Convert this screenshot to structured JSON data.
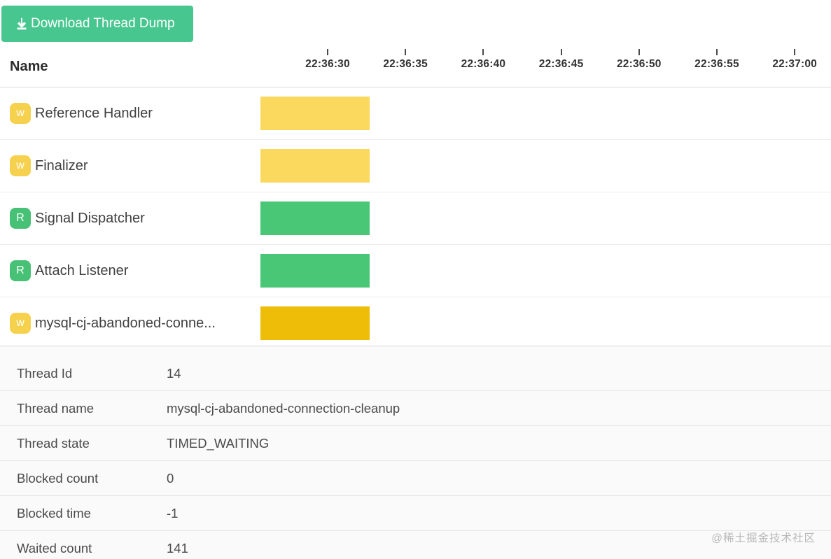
{
  "toolbar": {
    "download_button_label": "Download Thread Dump"
  },
  "table_header": {
    "name_label": "Name"
  },
  "timeline": {
    "ticks": [
      "22:36:30",
      "22:36:35",
      "22:36:40",
      "22:36:45",
      "22:36:50",
      "22:36:55",
      "22:37:00"
    ]
  },
  "threads": [
    {
      "badge": "w",
      "name": "Reference Handler",
      "state": "waiting",
      "badge_color": "#f6d14e",
      "bar_color": "#fbd95e"
    },
    {
      "badge": "w",
      "name": "Finalizer",
      "state": "waiting",
      "badge_color": "#f6d14e",
      "bar_color": "#fbd95e"
    },
    {
      "badge": "R",
      "name": "Signal Dispatcher",
      "state": "runnable",
      "badge_color": "#47c175",
      "bar_color": "#49c776"
    },
    {
      "badge": "R",
      "name": "Attach Listener",
      "state": "runnable",
      "badge_color": "#47c175",
      "bar_color": "#49c776"
    },
    {
      "badge": "w",
      "name": "mysql-cj-abandoned-conne...",
      "state": "timed_waiting",
      "badge_color": "#f6d14e",
      "bar_color": "#eebd08"
    }
  ],
  "details": [
    {
      "label": "Thread Id",
      "value": "14"
    },
    {
      "label": "Thread name",
      "value": "mysql-cj-abandoned-connection-cleanup"
    },
    {
      "label": "Thread state",
      "value": "TIMED_WAITING"
    },
    {
      "label": "Blocked count",
      "value": "0"
    },
    {
      "label": "Blocked time",
      "value": "-1"
    },
    {
      "label": "Waited count",
      "value": "141"
    }
  ],
  "colors": {
    "button_green": "#47c78f",
    "waiting_yellow": "#fbd95e",
    "runnable_green": "#49c776",
    "timed_waiting_gold": "#eebd08"
  },
  "watermark": "@稀土掘金技术社区"
}
